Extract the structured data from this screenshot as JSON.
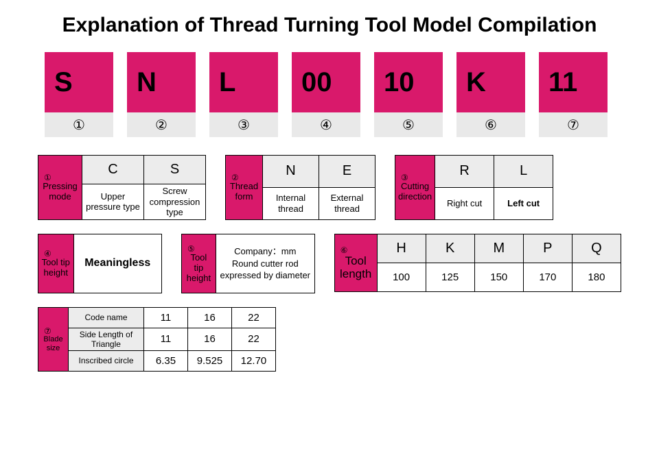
{
  "title": "Explanation of Thread Turning Tool Model Compilation",
  "colors": {
    "accent": "#d9196b",
    "gray": "#ececec",
    "border": "#000000",
    "bg": "#ffffff"
  },
  "codes": [
    {
      "char": "S",
      "marker": "①"
    },
    {
      "char": "N",
      "marker": "②"
    },
    {
      "char": "L",
      "marker": "③"
    },
    {
      "char": "00",
      "marker": "④"
    },
    {
      "char": "10",
      "marker": "⑤"
    },
    {
      "char": "K",
      "marker": "⑥"
    },
    {
      "char": "11",
      "marker": "⑦"
    }
  ],
  "t1": {
    "marker": "①",
    "title": "Pressing mode",
    "cols": [
      {
        "code": "C",
        "desc": "Upper pressure type"
      },
      {
        "code": "S",
        "desc": "Screw compression type"
      }
    ]
  },
  "t2": {
    "marker": "②",
    "title": "Thread form",
    "cols": [
      {
        "code": "N",
        "desc": "Internal thread"
      },
      {
        "code": "E",
        "desc": "External thread"
      }
    ]
  },
  "t3": {
    "marker": "③",
    "title": "Cutting direction",
    "cols": [
      {
        "code": "R",
        "desc": "Right cut"
      },
      {
        "code": "L",
        "desc": "Left cut",
        "bold": true
      }
    ]
  },
  "t4": {
    "marker": "④",
    "title": "Tool tip height",
    "body": "Meaningless"
  },
  "t5": {
    "marker": "⑤",
    "title": "Tool tip height",
    "line1": "Company：mm",
    "line2": "Round cutter rod expressed by diameter"
  },
  "t6": {
    "marker": "⑥",
    "title": "Tool length",
    "cols": [
      {
        "code": "H",
        "val": "100"
      },
      {
        "code": "K",
        "val": "125"
      },
      {
        "code": "M",
        "val": "150"
      },
      {
        "code": "P",
        "val": "170"
      },
      {
        "code": "Q",
        "val": "180"
      }
    ]
  },
  "t7": {
    "marker": "⑦",
    "title": "Blade size",
    "row_labels": [
      "Code name",
      "Side Length of Triangle",
      "Inscribed circle"
    ],
    "cols": [
      "11",
      "16",
      "22"
    ],
    "rows": [
      [
        "11",
        "16",
        "22"
      ],
      [
        "11",
        "16",
        "22"
      ],
      [
        "6.35",
        "9.525",
        "12.70"
      ]
    ]
  }
}
